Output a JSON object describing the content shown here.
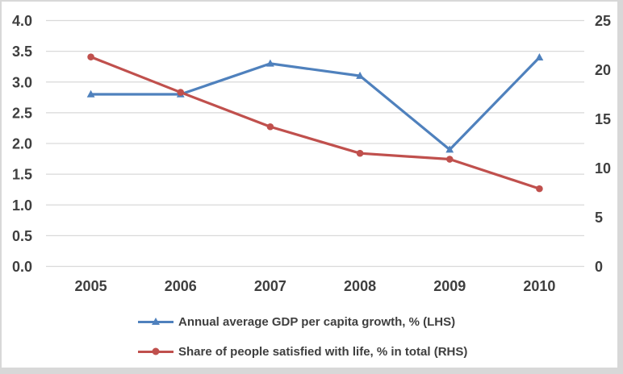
{
  "chart_data": {
    "type": "line",
    "title": "",
    "xlabel": "",
    "ylabel": "",
    "grid": true,
    "grid_color": "#D9D9D9",
    "text_color": "#3F3F3F",
    "legend_position": "bottom-left",
    "categories": [
      "2005",
      "2006",
      "2007",
      "2008",
      "2009",
      "2010"
    ],
    "series": [
      {
        "name": "Annual average GDP per capita growth, % (LHS)",
        "axis": "left",
        "marker": "triangle",
        "color": "#4F81BD",
        "values": [
          2.8,
          2.8,
          3.3,
          3.1,
          1.9,
          3.4
        ]
      },
      {
        "name": "Share of people satisfied with life, % in total (RHS)",
        "axis": "right",
        "marker": "circle",
        "color": "#C0504D",
        "values": [
          21.3,
          17.7,
          14.2,
          11.5,
          10.9,
          7.9
        ]
      }
    ],
    "left_axis": {
      "min": 0.0,
      "max": 4.0,
      "step": 0.5,
      "ticks": [
        "0.0",
        "0.5",
        "1.0",
        "1.5",
        "2.0",
        "2.5",
        "3.0",
        "3.5",
        "4.0"
      ]
    },
    "right_axis": {
      "min": 0,
      "max": 25,
      "step": 5,
      "ticks": [
        "0",
        "5",
        "10",
        "15",
        "20",
        "25"
      ]
    }
  }
}
